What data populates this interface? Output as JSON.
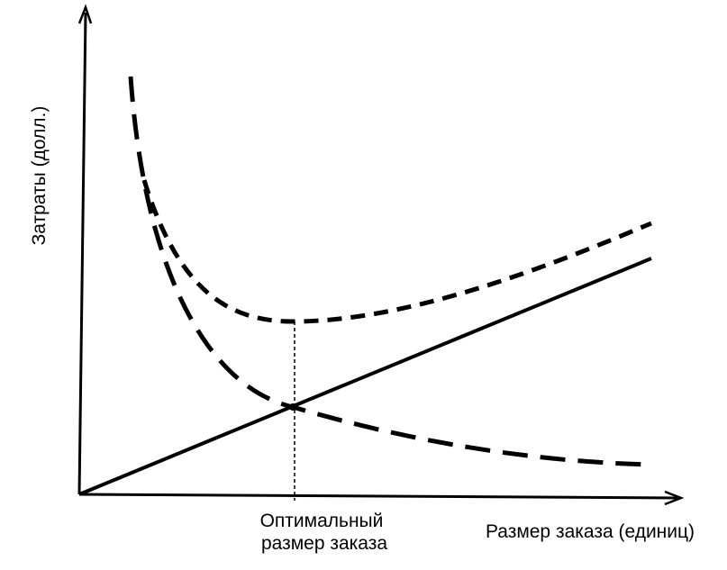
{
  "axes": {
    "y_label": "Затраты (долл.)",
    "x_label": "Размер заказа (единиц)"
  },
  "annotation": {
    "lines": [
      "Оптимальный",
      "размер заказа"
    ]
  }
}
